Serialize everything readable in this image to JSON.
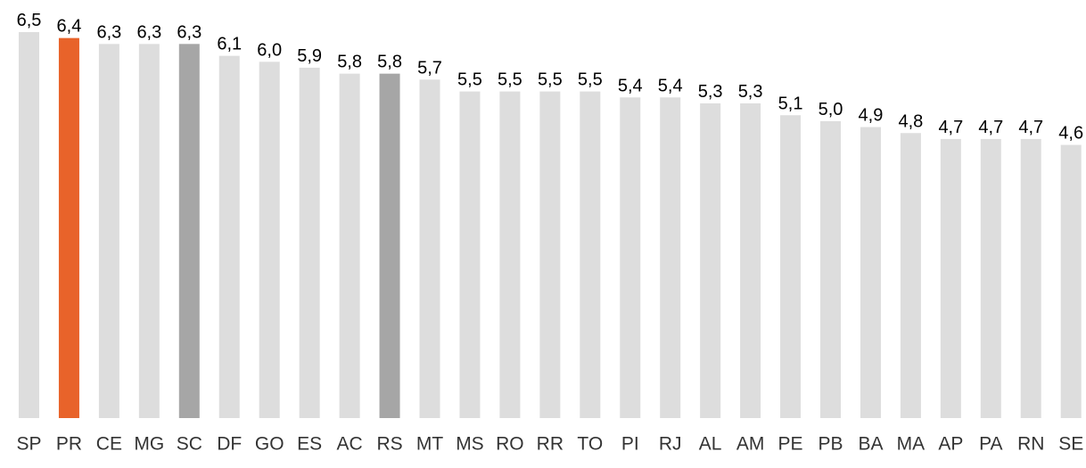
{
  "chart_data": {
    "type": "bar",
    "categories": [
      "SP",
      "PR",
      "CE",
      "MG",
      "SC",
      "DF",
      "GO",
      "ES",
      "AC",
      "RS",
      "MT",
      "MS",
      "RO",
      "RR",
      "TO",
      "PI",
      "RJ",
      "AL",
      "AM",
      "PE",
      "PB",
      "BA",
      "MA",
      "AP",
      "PA",
      "RN",
      "SE"
    ],
    "values": [
      6.5,
      6.4,
      6.3,
      6.3,
      6.3,
      6.1,
      6.0,
      5.9,
      5.8,
      5.8,
      5.7,
      5.5,
      5.5,
      5.5,
      5.5,
      5.4,
      5.4,
      5.3,
      5.3,
      5.1,
      5.0,
      4.9,
      4.8,
      4.7,
      4.7,
      4.7,
      4.6
    ],
    "value_labels": [
      "6,5",
      "6,4",
      "6,3",
      "6,3",
      "6,3",
      "6,1",
      "6,0",
      "5,9",
      "5,8",
      "5,8",
      "5,7",
      "5,5",
      "5,5",
      "5,5",
      "5,5",
      "5,4",
      "5,4",
      "5,3",
      "5,3",
      "5,1",
      "5,0",
      "4,9",
      "4,8",
      "4,7",
      "4,7",
      "4,7",
      "4,6"
    ],
    "bar_colors": [
      "#dddddd",
      "#e8632a",
      "#dddddd",
      "#dddddd",
      "#a6a6a6",
      "#dddddd",
      "#dddddd",
      "#dddddd",
      "#dddddd",
      "#a6a6a6",
      "#dddddd",
      "#dddddd",
      "#dddddd",
      "#dddddd",
      "#dddddd",
      "#dddddd",
      "#dddddd",
      "#dddddd",
      "#dddddd",
      "#dddddd",
      "#dddddd",
      "#dddddd",
      "#dddddd",
      "#dddddd",
      "#dddddd",
      "#dddddd",
      "#dddddd"
    ],
    "ylim": [
      0,
      6.5
    ],
    "grid": false,
    "legend": "none"
  }
}
